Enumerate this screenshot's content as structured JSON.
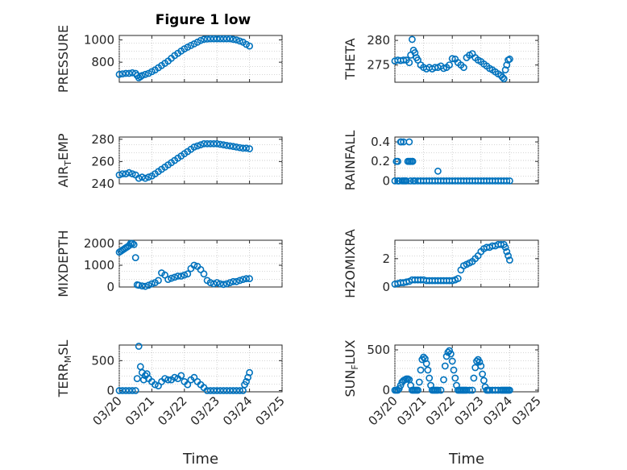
{
  "figure": {
    "title": "Figure 1 low",
    "marker_color": "#0072BD",
    "grid": "dotted"
  },
  "chart_data": [
    {
      "type": "scatter",
      "ylabel": "PRESSURE",
      "ylim": [
        620,
        1040
      ],
      "yticks": [
        800,
        1000
      ],
      "xticks": [
        "03/20",
        "03/21",
        "03/22",
        "03/23",
        "03/24",
        "03/25"
      ],
      "xlim_days": [
        0,
        5
      ],
      "show_x_ticklabels": false,
      "series": [
        {
          "x": [
            0.0,
            0.1,
            0.2,
            0.3,
            0.4,
            0.5,
            0.55,
            0.6,
            0.65,
            0.7,
            0.8,
            0.9,
            1.0,
            1.1,
            1.2,
            1.3,
            1.4,
            1.5,
            1.6,
            1.7,
            1.8,
            1.9,
            2.0,
            2.1,
            2.2,
            2.3,
            2.4,
            2.5,
            2.6,
            2.7,
            2.8,
            2.9,
            3.0,
            3.1,
            3.2,
            3.3,
            3.4,
            3.5,
            3.6,
            3.7,
            3.8,
            3.9,
            4.0
          ],
          "y": [
            690,
            695,
            700,
            700,
            705,
            700,
            680,
            660,
            670,
            680,
            690,
            700,
            715,
            730,
            750,
            770,
            790,
            810,
            835,
            860,
            880,
            900,
            920,
            935,
            950,
            965,
            980,
            995,
            1005,
            1008,
            1010,
            1010,
            1010,
            1010,
            1010,
            1010,
            1010,
            1005,
            1000,
            990,
            980,
            960,
            945
          ]
        }
      ]
    },
    {
      "type": "scatter",
      "ylabel": "THETA",
      "ylim": [
        271.5,
        281
      ],
      "yticks": [
        275,
        280
      ],
      "xticks": [
        "03/20",
        "03/21",
        "03/22",
        "03/23",
        "03/24",
        "03/25"
      ],
      "xlim_days": [
        0,
        5
      ],
      "show_x_ticklabels": false,
      "series": [
        {
          "x": [
            0.0,
            0.1,
            0.2,
            0.3,
            0.4,
            0.5,
            0.55,
            0.6,
            0.65,
            0.7,
            0.75,
            0.8,
            0.9,
            1.0,
            1.1,
            1.2,
            1.3,
            1.4,
            1.5,
            1.6,
            1.7,
            1.8,
            1.9,
            2.0,
            2.1,
            2.2,
            2.3,
            2.4,
            2.5,
            2.6,
            2.7,
            2.8,
            2.9,
            3.0,
            3.1,
            3.2,
            3.3,
            3.4,
            3.5,
            3.6,
            3.7,
            3.75,
            3.8,
            3.85,
            3.9,
            3.95,
            4.0
          ],
          "y": [
            275.8,
            276.0,
            275.9,
            276.0,
            276.0,
            275.5,
            277.0,
            280.2,
            278.0,
            277.5,
            276.5,
            276.0,
            275.0,
            274.5,
            274.2,
            274.5,
            274.2,
            274.5,
            274.5,
            274.8,
            274.3,
            274.5,
            275.0,
            276.3,
            276.2,
            275.5,
            275.0,
            274.5,
            276.5,
            277.0,
            277.3,
            276.5,
            276.0,
            275.7,
            275.2,
            274.8,
            274.3,
            274.0,
            273.6,
            273.2,
            272.9,
            272.5,
            272.2,
            274.0,
            275.0,
            276.0,
            276.2
          ]
        }
      ]
    },
    {
      "type": "scatter",
      "ylabel": "AIR_TEMP",
      "ylim": [
        240,
        282
      ],
      "yticks": [
        240,
        260,
        280
      ],
      "xticks": [
        "03/20",
        "03/21",
        "03/22",
        "03/23",
        "03/24",
        "03/25"
      ],
      "xlim_days": [
        0,
        5
      ],
      "show_x_ticklabels": false,
      "series": [
        {
          "x": [
            0.0,
            0.1,
            0.2,
            0.3,
            0.4,
            0.5,
            0.6,
            0.7,
            0.8,
            0.9,
            1.0,
            1.1,
            1.2,
            1.3,
            1.4,
            1.5,
            1.6,
            1.7,
            1.8,
            1.9,
            2.0,
            2.1,
            2.2,
            2.3,
            2.4,
            2.5,
            2.6,
            2.7,
            2.8,
            2.9,
            3.0,
            3.1,
            3.2,
            3.3,
            3.4,
            3.5,
            3.6,
            3.7,
            3.8,
            3.9,
            4.0
          ],
          "y": [
            248,
            249,
            249,
            250,
            249,
            248,
            245,
            246,
            245,
            246,
            247,
            249,
            251,
            253,
            255,
            257,
            259,
            261,
            263,
            265,
            267,
            269,
            271,
            273,
            274,
            275,
            276,
            276,
            276,
            276,
            276,
            275.5,
            275,
            274.5,
            274,
            273.5,
            273,
            272.5,
            272,
            272,
            271.5
          ]
        }
      ]
    },
    {
      "type": "scatter",
      "ylabel": "RAINFALL",
      "ylim": [
        -0.03,
        0.45
      ],
      "yticks": [
        0,
        0.2,
        0.4
      ],
      "xticks": [
        "03/20",
        "03/21",
        "03/22",
        "03/23",
        "03/24",
        "03/25"
      ],
      "xlim_days": [
        0,
        5
      ],
      "show_x_ticklabels": false,
      "series": [
        {
          "x": [
            0.0,
            0.05,
            0.1,
            0.15,
            0.2,
            0.25,
            0.3,
            0.35,
            0.4,
            0.45,
            0.5,
            0.55,
            0.6,
            0.65,
            0.7,
            0.8,
            0.9,
            1.0,
            1.1,
            1.2,
            1.3,
            1.4,
            1.5,
            1.6,
            1.7,
            1.8,
            1.9,
            2.0,
            2.1,
            2.2,
            2.3,
            2.4,
            2.5,
            2.6,
            2.7,
            2.8,
            2.9,
            3.0,
            3.1,
            3.2,
            3.3,
            3.4,
            3.5,
            3.6,
            3.7,
            3.8,
            3.9,
            4.0,
            0.1,
            0.12,
            0.22,
            0.3,
            0.5,
            0.55,
            0.62,
            1.5
          ],
          "y": [
            0,
            0.2,
            0,
            0,
            0.4,
            0,
            0.4,
            0,
            0,
            0.2,
            0.4,
            0,
            0.2,
            0,
            0,
            0,
            0,
            0,
            0,
            0,
            0,
            0,
            0,
            0,
            0,
            0,
            0,
            0,
            0,
            0,
            0,
            0,
            0,
            0,
            0,
            0,
            0,
            0,
            0,
            0,
            0,
            0,
            0,
            0,
            0,
            0,
            0,
            0,
            0.2,
            0,
            0.4,
            0,
            0.2,
            0.2,
            0.2,
            0.1
          ]
        }
      ]
    },
    {
      "type": "scatter",
      "ylabel": "MIXDEPTH",
      "ylim": [
        0,
        2150
      ],
      "yticks": [
        0,
        1000,
        2000
      ],
      "xticks": [
        "03/20",
        "03/21",
        "03/22",
        "03/23",
        "03/24",
        "03/25"
      ],
      "xlim_days": [
        0,
        5
      ],
      "show_x_ticklabels": false,
      "series": [
        {
          "x": [
            0.0,
            0.05,
            0.1,
            0.15,
            0.2,
            0.25,
            0.3,
            0.35,
            0.4,
            0.45,
            0.5,
            0.55,
            0.6,
            0.7,
            0.8,
            0.9,
            1.0,
            1.1,
            1.2,
            1.3,
            1.4,
            1.5,
            1.6,
            1.7,
            1.8,
            1.9,
            2.0,
            2.1,
            2.2,
            2.3,
            2.4,
            2.5,
            2.6,
            2.7,
            2.8,
            2.9,
            3.0,
            3.1,
            3.2,
            3.3,
            3.4,
            3.5,
            3.6,
            3.7,
            3.8,
            3.9,
            4.0
          ],
          "y": [
            1600,
            1650,
            1700,
            1750,
            1800,
            1850,
            1900,
            2000,
            2000,
            1950,
            1350,
            100,
            80,
            50,
            30,
            80,
            150,
            200,
            300,
            650,
            550,
            350,
            400,
            450,
            500,
            500,
            550,
            600,
            850,
            1000,
            950,
            800,
            600,
            300,
            200,
            150,
            200,
            150,
            120,
            150,
            200,
            250,
            250,
            300,
            350,
            380,
            380
          ]
        }
      ]
    },
    {
      "type": "scatter",
      "ylabel": "H2OMIXRA",
      "ylim": [
        0,
        3.3
      ],
      "yticks": [
        0,
        2
      ],
      "xticks": [
        "03/20",
        "03/21",
        "03/22",
        "03/23",
        "03/24",
        "03/25"
      ],
      "xlim_days": [
        0,
        5
      ],
      "show_x_ticklabels": false,
      "series": [
        {
          "x": [
            0.0,
            0.1,
            0.2,
            0.3,
            0.4,
            0.5,
            0.6,
            0.7,
            0.8,
            0.9,
            1.0,
            1.1,
            1.2,
            1.3,
            1.4,
            1.5,
            1.6,
            1.7,
            1.8,
            1.9,
            2.0,
            2.1,
            2.2,
            2.3,
            2.4,
            2.5,
            2.6,
            2.7,
            2.8,
            2.9,
            3.0,
            3.1,
            3.2,
            3.3,
            3.4,
            3.5,
            3.6,
            3.7,
            3.8,
            3.85,
            3.9,
            3.95,
            4.0
          ],
          "y": [
            0.2,
            0.25,
            0.3,
            0.3,
            0.35,
            0.4,
            0.5,
            0.5,
            0.5,
            0.5,
            0.5,
            0.45,
            0.45,
            0.45,
            0.45,
            0.45,
            0.45,
            0.45,
            0.45,
            0.45,
            0.45,
            0.5,
            0.6,
            1.2,
            1.5,
            1.6,
            1.7,
            1.8,
            2.0,
            2.2,
            2.5,
            2.7,
            2.8,
            2.8,
            2.9,
            2.9,
            3.0,
            3.0,
            3.0,
            2.8,
            2.5,
            2.2,
            1.9
          ]
        }
      ]
    },
    {
      "type": "scatter",
      "ylabel": "TERR_MSL",
      "ylim": [
        -20,
        760
      ],
      "yticks": [
        0,
        500
      ],
      "xticks": [
        "03/20",
        "03/21",
        "03/22",
        "03/23",
        "03/24",
        "03/25"
      ],
      "xlim_days": [
        0,
        5
      ],
      "show_x_ticklabels": true,
      "xlabel": "Time",
      "series": [
        {
          "x": [
            0.0,
            0.1,
            0.2,
            0.3,
            0.4,
            0.5,
            0.55,
            0.6,
            0.65,
            0.7,
            0.75,
            0.8,
            0.85,
            0.9,
            1.0,
            1.1,
            1.2,
            1.3,
            1.4,
            1.5,
            1.6,
            1.7,
            1.8,
            1.9,
            2.0,
            2.1,
            2.2,
            2.3,
            2.4,
            2.5,
            2.6,
            2.7,
            2.8,
            2.9,
            3.0,
            3.1,
            3.2,
            3.3,
            3.4,
            3.5,
            3.6,
            3.7,
            3.8,
            3.85,
            3.9,
            3.95,
            4.0
          ],
          "y": [
            0,
            0,
            0,
            0,
            0,
            0,
            200,
            740,
            400,
            300,
            180,
            250,
            280,
            200,
            150,
            100,
            80,
            150,
            200,
            180,
            180,
            220,
            200,
            250,
            150,
            100,
            180,
            220,
            150,
            100,
            50,
            0,
            0,
            0,
            0,
            0,
            0,
            0,
            0,
            0,
            0,
            0,
            0,
            100,
            150,
            220,
            300
          ]
        }
      ]
    },
    {
      "type": "scatter",
      "ylabel": "SUN_FLUX",
      "ylim": [
        -20,
        560
      ],
      "yticks": [
        0,
        500
      ],
      "xticks": [
        "03/20",
        "03/21",
        "03/22",
        "03/23",
        "03/24",
        "03/25"
      ],
      "xlim_days": [
        0,
        5
      ],
      "show_x_ticklabels": true,
      "xlabel": "Time",
      "series": [
        {
          "x": [
            0.0,
            0.05,
            0.1,
            0.15,
            0.2,
            0.25,
            0.3,
            0.35,
            0.4,
            0.45,
            0.5,
            0.55,
            0.6,
            0.65,
            0.7,
            0.75,
            0.8,
            0.85,
            0.9,
            0.95,
            1.0,
            1.05,
            1.1,
            1.15,
            1.2,
            1.25,
            1.3,
            1.35,
            1.4,
            1.45,
            1.5,
            1.6,
            1.7,
            1.75,
            1.8,
            1.85,
            1.9,
            1.95,
            2.0,
            2.05,
            2.1,
            2.15,
            2.2,
            2.25,
            2.3,
            2.35,
            2.4,
            2.45,
            2.5,
            2.6,
            2.7,
            2.75,
            2.8,
            2.85,
            2.9,
            2.95,
            3.0,
            3.05,
            3.1,
            3.15,
            3.2,
            3.25,
            3.3,
            3.4,
            3.5,
            3.6,
            3.7,
            3.75,
            3.8,
            3.85,
            3.9,
            3.95,
            4.0
          ],
          "y": [
            0,
            0,
            0,
            20,
            60,
            100,
            120,
            130,
            140,
            140,
            130,
            60,
            0,
            0,
            0,
            0,
            0,
            100,
            250,
            380,
            410,
            390,
            330,
            250,
            150,
            60,
            0,
            0,
            0,
            0,
            0,
            0,
            130,
            300,
            420,
            470,
            490,
            450,
            360,
            250,
            150,
            60,
            0,
            0,
            0,
            0,
            0,
            0,
            0,
            0,
            0,
            150,
            280,
            360,
            380,
            350,
            300,
            200,
            120,
            40,
            0,
            0,
            0,
            0,
            0,
            0,
            0,
            0,
            0,
            0,
            0,
            0,
            0
          ]
        }
      ]
    }
  ]
}
